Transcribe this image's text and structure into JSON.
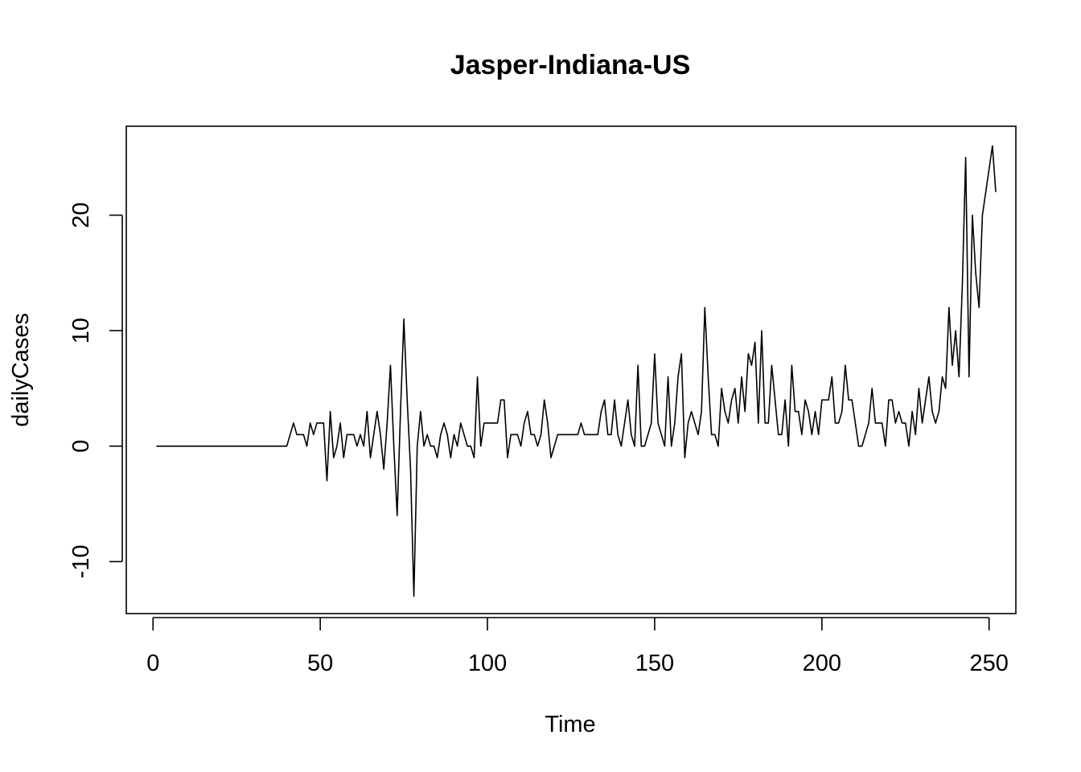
{
  "chart_data": {
    "type": "line",
    "title": "Jasper-Indiana-US",
    "xlabel": "Time",
    "ylabel": "dailyCases",
    "xlim": [
      -8,
      258
    ],
    "ylim": [
      -14.5,
      27.7
    ],
    "xticks": [
      0,
      50,
      100,
      150,
      200,
      250
    ],
    "xtick_labels": [
      "0",
      "50",
      "100",
      "150",
      "200",
      "250"
    ],
    "yticks": [
      -10,
      0,
      10,
      20
    ],
    "ytick_labels": [
      "-10",
      "0",
      "10",
      "20"
    ],
    "grid": false,
    "legend": "none",
    "line_color": "#000000",
    "x_start": 1,
    "series": [
      {
        "values": [
          0,
          0,
          0,
          0,
          0,
          0,
          0,
          0,
          0,
          0,
          0,
          0,
          0,
          0,
          0,
          0,
          0,
          0,
          0,
          0,
          0,
          0,
          0,
          0,
          0,
          0,
          0,
          0,
          0,
          0,
          0,
          0,
          0,
          0,
          0,
          0,
          0,
          0,
          0,
          0,
          1,
          2,
          1,
          1,
          1,
          0,
          2,
          1,
          2,
          2,
          2,
          -3,
          3,
          -1,
          0,
          2,
          -1,
          1,
          1,
          1,
          0,
          1,
          0,
          3,
          -1,
          1,
          3,
          1,
          -2,
          2,
          7,
          0,
          -6,
          3,
          11,
          4,
          -2,
          -13,
          0,
          3,
          0,
          1,
          0,
          0,
          -1,
          1,
          2,
          1,
          -1,
          1,
          0,
          2,
          1,
          0,
          0,
          -1,
          6,
          0,
          2,
          2,
          2,
          2,
          2,
          4,
          4,
          -1,
          1,
          1,
          1,
          0,
          2,
          3,
          1,
          1,
          0,
          1,
          4,
          2,
          -1,
          0,
          1,
          1,
          1,
          1,
          1,
          1,
          1,
          2,
          1,
          1,
          1,
          1,
          1,
          3,
          4,
          1,
          1,
          4,
          1,
          0,
          2,
          4,
          1,
          0,
          7,
          0,
          0,
          1,
          2,
          8,
          2,
          1,
          0,
          6,
          0,
          2,
          6,
          8,
          -1,
          2,
          3,
          2,
          1,
          3,
          12,
          6,
          1,
          1,
          0,
          5,
          3,
          2,
          4,
          5,
          2,
          6,
          3,
          8,
          7,
          9,
          2,
          10,
          2,
          2,
          7,
          4,
          1,
          1,
          4,
          0,
          7,
          3,
          3,
          1,
          4,
          3,
          1,
          3,
          1,
          4,
          4,
          4,
          6,
          2,
          2,
          3,
          7,
          4,
          4,
          2,
          0,
          0,
          1,
          2,
          5,
          2,
          2,
          2,
          0,
          4,
          4,
          2,
          3,
          2,
          2,
          0,
          3,
          1,
          5,
          2,
          4,
          6,
          3,
          2,
          3,
          6,
          5,
          12,
          7,
          10,
          6,
          14,
          25,
          6,
          20,
          15,
          12,
          20,
          22,
          24,
          26,
          22
        ]
      }
    ]
  }
}
